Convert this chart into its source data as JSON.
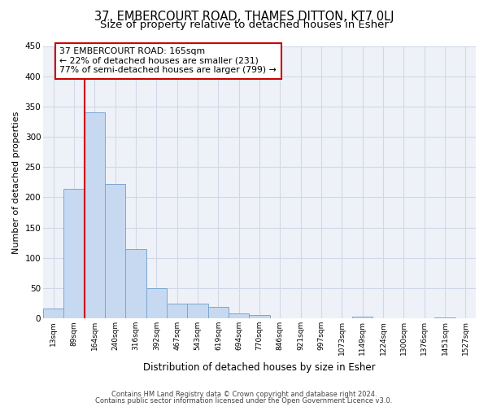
{
  "title1": "37, EMBERCOURT ROAD, THAMES DITTON, KT7 0LJ",
  "title2": "Size of property relative to detached houses in Esher",
  "xlabel": "Distribution of detached houses by size in Esher",
  "ylabel": "Number of detached properties",
  "bar_labels": [
    "13sqm",
    "89sqm",
    "164sqm",
    "240sqm",
    "316sqm",
    "392sqm",
    "467sqm",
    "543sqm",
    "619sqm",
    "694sqm",
    "770sqm",
    "846sqm",
    "921sqm",
    "997sqm",
    "1073sqm",
    "1149sqm",
    "1224sqm",
    "1300sqm",
    "1376sqm",
    "1451sqm",
    "1527sqm"
  ],
  "bar_values": [
    17,
    214,
    340,
    222,
    114,
    50,
    25,
    25,
    19,
    8,
    6,
    0,
    0,
    0,
    0,
    3,
    0,
    0,
    0,
    2,
    1
  ],
  "bar_color": "#c6d9f1",
  "bar_edgecolor": "#7ba7d0",
  "vline_index": 2,
  "vline_color": "#cc0000",
  "annotation_title": "37 EMBERCOURT ROAD: 165sqm",
  "annotation_line2": "← 22% of detached houses are smaller (231)",
  "annotation_line3": "77% of semi-detached houses are larger (799) →",
  "annotation_box_color": "#ffffff",
  "annotation_box_edgecolor": "#cc0000",
  "ylim": [
    0,
    450
  ],
  "yticks": [
    0,
    50,
    100,
    150,
    200,
    250,
    300,
    350,
    400,
    450
  ],
  "grid_color": "#d0d8e8",
  "bg_color": "#eef2f8",
  "footer1": "Contains HM Land Registry data © Crown copyright and database right 2024.",
  "footer2": "Contains public sector information licensed under the Open Government Licence v3.0.",
  "title1_fontsize": 10.5,
  "title2_fontsize": 9.5
}
